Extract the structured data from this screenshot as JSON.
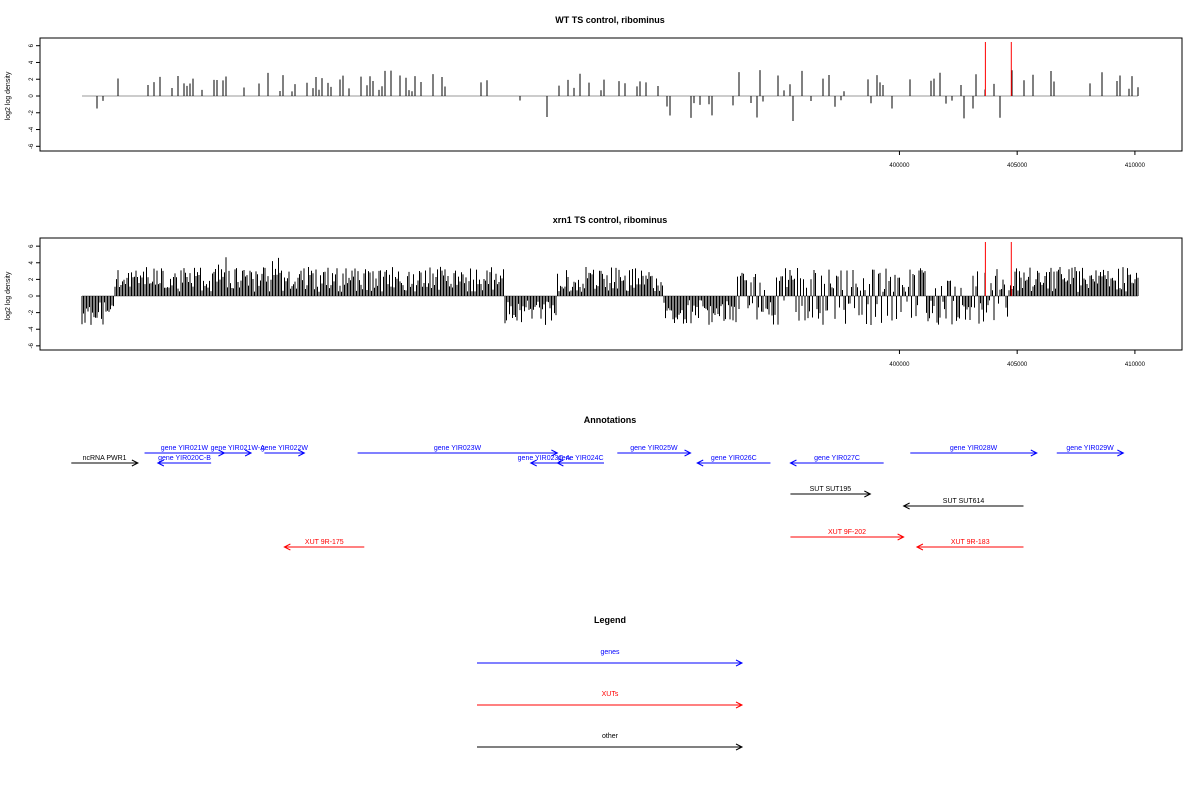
{
  "chart_data": [
    {
      "type": "bar",
      "title": "WT TS control, ribominus",
      "xlabel": "",
      "ylabel": "log2 log density",
      "xlim": [
        363500,
        412000
      ],
      "ylim": [
        -6.5,
        6.5
      ],
      "xticks": [
        400000,
        405000,
        410000
      ],
      "yticks": [
        6,
        4,
        2,
        0,
        -2,
        -4,
        -6
      ],
      "grid": false,
      "marker_positions": [
        403650,
        404750
      ],
      "series_density": 0.35
    },
    {
      "type": "bar",
      "title": "xrn1 TS control, ribominus",
      "xlabel": "",
      "ylabel": "log2 log density",
      "xlim": [
        363500,
        412000
      ],
      "ylim": [
        -6.5,
        6.5
      ],
      "xticks": [
        400000,
        405000,
        410000
      ],
      "yticks": [
        6,
        4,
        2,
        0,
        -2,
        -4,
        -6
      ],
      "grid": false,
      "marker_positions": [
        403650,
        404750
      ],
      "series_density": 1.0
    }
  ],
  "annotations": {
    "title": "Annotations",
    "items": [
      {
        "label": "ncRNA PWR1",
        "kind": "other",
        "color": "#000000",
        "dir": "right",
        "start": 384000,
        "end": 385000,
        "row": 0
      },
      {
        "label": "gene YIR020C-B",
        "kind": "gene",
        "color": "#0000ff",
        "dir": "left",
        "start": 385300,
        "end": 386100,
        "row": 0
      },
      {
        "label": "gene YIR021W",
        "kind": "gene",
        "color": "#0000ff",
        "dir": "right",
        "start": 385100,
        "end": 386300,
        "row": 1
      },
      {
        "label": "gene YIR021W-A",
        "kind": "gene",
        "color": "#0000ff",
        "dir": "right",
        "start": 386300,
        "end": 386700,
        "row": 1
      },
      {
        "label": "gene YIR022W",
        "kind": "gene",
        "color": "#0000ff",
        "dir": "right",
        "start": 386900,
        "end": 387500,
        "row": 1
      },
      {
        "label": "gene YIR023W",
        "kind": "gene",
        "color": "#0000ff",
        "dir": "right",
        "start": 388300,
        "end": 391300,
        "row": 1
      },
      {
        "label": "gene YIR023C-A",
        "kind": "gene",
        "color": "#0000ff",
        "dir": "left",
        "start": 390900,
        "end": 391300,
        "row": 0
      },
      {
        "label": "gene YIR024C",
        "kind": "gene",
        "color": "#0000ff",
        "dir": "left",
        "start": 391300,
        "end": 392000,
        "row": 0
      },
      {
        "label": "gene YIR025W",
        "kind": "gene",
        "color": "#0000ff",
        "dir": "right",
        "start": 392200,
        "end": 393300,
        "row": 1
      },
      {
        "label": "gene YIR026C",
        "kind": "gene",
        "color": "#0000ff",
        "dir": "left",
        "start": 393400,
        "end": 394500,
        "row": 0
      },
      {
        "label": "gene YIR027C",
        "kind": "gene",
        "color": "#0000ff",
        "dir": "left",
        "start": 394800,
        "end": 396200,
        "row": 0
      },
      {
        "label": "gene YIR028W",
        "kind": "gene",
        "color": "#0000ff",
        "dir": "right",
        "start": 396600,
        "end": 398500,
        "row": 1
      },
      {
        "label": "gene YIR029W",
        "kind": "gene",
        "color": "#0000ff",
        "dir": "right",
        "start": 398800,
        "end": 399800,
        "row": 1
      },
      {
        "label": "SUT SUT195",
        "kind": "other",
        "color": "#000000",
        "dir": "right",
        "start": 394800,
        "end": 396000,
        "row": 2
      },
      {
        "label": "SUT SUT614",
        "kind": "other",
        "color": "#000000",
        "dir": "left",
        "start": 396500,
        "end": 398300,
        "row": 3
      },
      {
        "label": "XUT 9R-175",
        "kind": "xut",
        "color": "#ff0000",
        "dir": "left",
        "start": 387200,
        "end": 388400,
        "row": 5
      },
      {
        "label": "XUT 9F-202",
        "kind": "xut",
        "color": "#ff0000",
        "dir": "right",
        "start": 394800,
        "end": 396500,
        "row": 4
      },
      {
        "label": "XUT 9R-183",
        "kind": "xut",
        "color": "#ff0000",
        "dir": "left",
        "start": 396700,
        "end": 398300,
        "row": 5
      }
    ]
  },
  "legend": {
    "title": "Legend",
    "items": [
      {
        "label": "genes",
        "color": "#0000ff"
      },
      {
        "label": "XUTs",
        "color": "#ff0000"
      },
      {
        "label": "other",
        "color": "#000000"
      }
    ]
  },
  "colors": {
    "axis": "#000000",
    "bars": "#000000",
    "marker": "#ff0000",
    "baseline": "#999999"
  }
}
